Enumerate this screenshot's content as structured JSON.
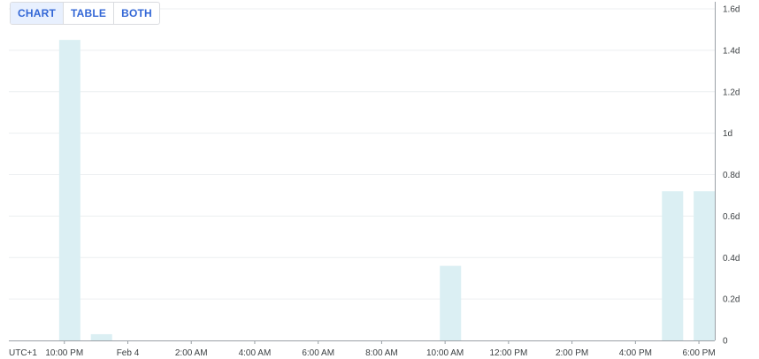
{
  "toggle": {
    "options": [
      "CHART",
      "TABLE",
      "BOTH"
    ],
    "selected": "CHART"
  },
  "colors": {
    "bar": "#dbeff3",
    "grid": "#eceff1",
    "axis": "#9aa0a6",
    "text": "#3c4043",
    "accent": "#3367d6"
  },
  "chart_data": {
    "type": "bar",
    "timezone_label": "UTC+1",
    "x_tick_labels": [
      "10:00 PM",
      "Feb 4",
      "2:00 AM",
      "4:00 AM",
      "6:00 AM",
      "8:00 AM",
      "10:00 AM",
      "12:00 PM",
      "2:00 PM",
      "4:00 PM",
      "6:00 PM"
    ],
    "y_tick_labels": [
      "0",
      "0.2d",
      "0.4d",
      "0.6d",
      "0.8d",
      "1d",
      "1.2d",
      "1.4d",
      "1.6d"
    ],
    "ylim": [
      0,
      1.6
    ],
    "y_unit": "days",
    "x_range_hours": [
      -3.75,
      18.5
    ],
    "bar_width_hours": 0.67,
    "bars": [
      {
        "time": "Feb 3 10:10 PM",
        "x_hours": -1.83,
        "value": 1.45
      },
      {
        "time": "Feb 3 11:10 PM",
        "x_hours": -0.83,
        "value": 0.03
      },
      {
        "time": "Feb 4 10:10 AM",
        "x_hours": 10.17,
        "value": 0.36
      },
      {
        "time": "Feb 4 5:10 PM",
        "x_hours": 17.17,
        "value": 0.72
      },
      {
        "time": "Feb 4 6:10 PM",
        "x_hours": 18.17,
        "value": 0.72
      }
    ],
    "grid": true
  }
}
